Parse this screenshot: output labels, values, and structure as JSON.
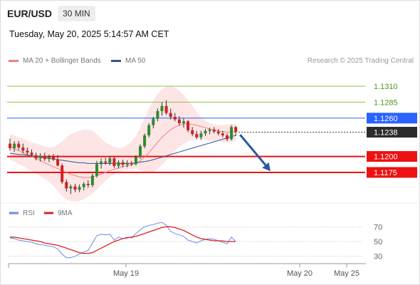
{
  "header": {
    "symbol": "EUR/USD",
    "timeframe": "30 MIN",
    "datetime": "Tuesday, May 20, 2025 5:14:57 AM CET"
  },
  "legend": [
    {
      "label": "MA 20 + Bollinger Bands",
      "color": "#f08080"
    },
    {
      "label": "MA 50",
      "color": "#2f5597"
    }
  ],
  "research": "Research © 2025 Trading Central",
  "colors": {
    "up": "#2e8b2e",
    "down": "#d42020",
    "resistance": "#8bc34a",
    "pivot": "#2962ff",
    "support": "#ee1111",
    "band": "#fde0e0",
    "arrow": "#2a5a9f"
  },
  "chart_data": [
    {
      "type": "candlestick",
      "ylim": [
        1.1127,
        1.1339
      ],
      "levels": [
        {
          "value": 1.131,
          "label": "1.1310",
          "kind": "resistance"
        },
        {
          "value": 1.1285,
          "label": "1.1285",
          "kind": "resistance"
        },
        {
          "value": 1.126,
          "label": "1.1260",
          "kind": "pivot"
        },
        {
          "value": 1.1238,
          "label": "1.1238",
          "kind": "last"
        },
        {
          "value": 1.12,
          "label": "1.1200",
          "kind": "support"
        },
        {
          "value": 1.1175,
          "label": "1.1175",
          "kind": "support"
        }
      ],
      "x_ticks": [
        {
          "index": 18,
          "label": "May 19"
        },
        {
          "index": 46,
          "label": "May 20"
        },
        {
          "index": 53,
          "label": "May 25"
        }
      ],
      "ohlc": [
        [
          1.122,
          1.1228,
          1.1209,
          1.1213
        ],
        [
          1.1213,
          1.1224,
          1.1207,
          1.122
        ],
        [
          1.122,
          1.1224,
          1.121,
          1.1214
        ],
        [
          1.1214,
          1.122,
          1.1205,
          1.1209
        ],
        [
          1.1209,
          1.1214,
          1.1202,
          1.1206
        ],
        [
          1.1206,
          1.1211,
          1.1199,
          1.1202
        ],
        [
          1.1202,
          1.1206,
          1.1194,
          1.1197
        ],
        [
          1.1197,
          1.1205,
          1.1192,
          1.1201
        ],
        [
          1.1201,
          1.1206,
          1.1193,
          1.1196
        ],
        [
          1.1196,
          1.1203,
          1.1191,
          1.1199
        ],
        [
          1.1199,
          1.1204,
          1.1193,
          1.1195
        ],
        [
          1.1195,
          1.1202,
          1.1184,
          1.1186
        ],
        [
          1.1186,
          1.1189,
          1.1157,
          1.116
        ],
        [
          1.116,
          1.1164,
          1.1145,
          1.115
        ],
        [
          1.115,
          1.1156,
          1.1141,
          1.1153
        ],
        [
          1.1153,
          1.1157,
          1.1144,
          1.1148
        ],
        [
          1.1148,
          1.1156,
          1.1144,
          1.1152
        ],
        [
          1.1152,
          1.116,
          1.1147,
          1.1157
        ],
        [
          1.1157,
          1.1163,
          1.1151,
          1.1155
        ],
        [
          1.1155,
          1.1173,
          1.1152,
          1.117
        ],
        [
          1.117,
          1.1193,
          1.1167,
          1.1188
        ],
        [
          1.1188,
          1.1197,
          1.1181,
          1.1192
        ],
        [
          1.1192,
          1.1198,
          1.1187,
          1.119
        ],
        [
          1.119,
          1.1201,
          1.1186,
          1.1197
        ],
        [
          1.1197,
          1.12,
          1.1182,
          1.1185
        ],
        [
          1.1185,
          1.1194,
          1.1181,
          1.1191
        ],
        [
          1.1191,
          1.1195,
          1.1183,
          1.1187
        ],
        [
          1.1187,
          1.1194,
          1.1183,
          1.119
        ],
        [
          1.119,
          1.1193,
          1.1185,
          1.1188
        ],
        [
          1.1188,
          1.1202,
          1.1186,
          1.1199
        ],
        [
          1.1199,
          1.1219,
          1.1196,
          1.1216
        ],
        [
          1.1216,
          1.1236,
          1.1213,
          1.1233
        ],
        [
          1.1233,
          1.1252,
          1.123,
          1.1249
        ],
        [
          1.1249,
          1.1262,
          1.1244,
          1.1259
        ],
        [
          1.1259,
          1.1275,
          1.1255,
          1.1271
        ],
        [
          1.1271,
          1.1285,
          1.1264,
          1.1279
        ],
        [
          1.1279,
          1.1288,
          1.1265,
          1.1268
        ],
        [
          1.1268,
          1.1275,
          1.1258,
          1.1262
        ],
        [
          1.1262,
          1.1268,
          1.1255,
          1.1258
        ],
        [
          1.1258,
          1.1263,
          1.1248,
          1.1252
        ],
        [
          1.1252,
          1.126,
          1.1245,
          1.1255
        ],
        [
          1.1255,
          1.1257,
          1.1238,
          1.1241
        ],
        [
          1.1241,
          1.1246,
          1.1232,
          1.1235
        ],
        [
          1.1235,
          1.124,
          1.1227,
          1.123
        ],
        [
          1.123,
          1.124,
          1.1226,
          1.1236
        ],
        [
          1.1236,
          1.1243,
          1.1232,
          1.124
        ],
        [
          1.124,
          1.1245,
          1.1235,
          1.1242
        ],
        [
          1.1242,
          1.1246,
          1.1236,
          1.1239
        ],
        [
          1.1239,
          1.1243,
          1.1233,
          1.1236
        ],
        [
          1.1236,
          1.124,
          1.123,
          1.1233
        ],
        [
          1.1233,
          1.1236,
          1.1224,
          1.1227
        ],
        [
          1.1227,
          1.1249,
          1.1225,
          1.1246
        ],
        [
          1.1246,
          1.1248,
          1.1232,
          1.1238
        ]
      ],
      "bollinger_upper": [
        1.1235,
        1.1233,
        1.123,
        1.1228,
        1.1225,
        1.1222,
        1.122,
        1.1218,
        1.1216,
        1.1214,
        1.1215,
        1.1218,
        1.1224,
        1.123,
        1.1235,
        1.1238,
        1.124,
        1.1242,
        1.1242,
        1.124,
        1.1235,
        1.1228,
        1.1222,
        1.1218,
        1.1215,
        1.1213,
        1.1214,
        1.1218,
        1.1224,
        1.1232,
        1.1245,
        1.126,
        1.1275,
        1.1288,
        1.1298,
        1.1305,
        1.1309,
        1.131,
        1.1308,
        1.1303,
        1.1296,
        1.1288,
        1.1279,
        1.127,
        1.1262,
        1.1256,
        1.1252,
        1.125,
        1.1249,
        1.1249,
        1.125,
        1.1251,
        1.1252
      ],
      "bollinger_lower": [
        1.1195,
        1.1192,
        1.1188,
        1.1185,
        1.1181,
        1.1177,
        1.1173,
        1.1169,
        1.1165,
        1.116,
        1.1154,
        1.1146,
        1.1138,
        1.1133,
        1.113,
        1.1129,
        1.113,
        1.1133,
        1.1137,
        1.1142,
        1.1148,
        1.1155,
        1.1162,
        1.1168,
        1.1172,
        1.1175,
        1.1178,
        1.118,
        1.1181,
        1.1181,
        1.1178,
        1.1175,
        1.1174,
        1.1176,
        1.118,
        1.1186,
        1.1194,
        1.1202,
        1.1209,
        1.1215,
        1.122,
        1.1224,
        1.1226,
        1.1227,
        1.1227,
        1.1226,
        1.1225,
        1.1224,
        1.1223,
        1.1222,
        1.1222,
        1.1223,
        1.1224
      ],
      "ma20": [
        1.1215,
        1.1212,
        1.1209,
        1.1206,
        1.1203,
        1.12,
        1.1197,
        1.1194,
        1.119,
        1.1187,
        1.1184,
        1.1181,
        1.1178,
        1.1175,
        1.1172,
        1.117,
        1.1168,
        1.1167,
        1.1167,
        1.1168,
        1.117,
        1.1172,
        1.1175,
        1.1178,
        1.118,
        1.1182,
        1.1184,
        1.1185,
        1.1187,
        1.1189,
        1.1193,
        1.1199,
        1.1206,
        1.1214,
        1.1222,
        1.123,
        1.1236,
        1.1242,
        1.1246,
        1.1249,
        1.1251,
        1.1251,
        1.125,
        1.1249,
        1.1247,
        1.1245,
        1.1243,
        1.1241,
        1.124,
        1.1239,
        1.1238,
        1.1238,
        1.1239
      ],
      "ma50": [
        1.1205,
        1.1204,
        1.1203,
        1.1203,
        1.1202,
        1.1201,
        1.12,
        1.1199,
        1.1198,
        1.1197,
        1.1196,
        1.1195,
        1.1194,
        1.1193,
        1.1192,
        1.1191,
        1.119,
        1.119,
        1.1189,
        1.1189,
        1.1189,
        1.1189,
        1.1189,
        1.1189,
        1.1189,
        1.1189,
        1.1189,
        1.1189,
        1.1189,
        1.119,
        1.1191,
        1.1192,
        1.1193,
        1.1195,
        1.1197,
        1.1199,
        1.1201,
        1.1203,
        1.1205,
        1.1207,
        1.1209,
        1.1211,
        1.1213,
        1.1215,
        1.1217,
        1.1219,
        1.1221,
        1.1223,
        1.1225,
        1.1227,
        1.1229,
        1.1231,
        1.1233
      ],
      "forecast_arrow": {
        "from_index": 53,
        "from_value": 1.1234,
        "to_index": 60,
        "to_value": 1.1177
      }
    },
    {
      "type": "line",
      "legend": [
        "RSI",
        "9MA"
      ],
      "ylim": [
        22,
        80
      ],
      "y_ticks": [
        70,
        50,
        30
      ],
      "series": [
        {
          "name": "RSI",
          "color": "#6a8ee0",
          "values": [
            55,
            54,
            52,
            51,
            50,
            49,
            47,
            46,
            45,
            44,
            43,
            40,
            33,
            28,
            28,
            30,
            33,
            36,
            38,
            48,
            58,
            60,
            59,
            60,
            52,
            56,
            54,
            56,
            55,
            61,
            66,
            70,
            72,
            73,
            75,
            76,
            72,
            64,
            61,
            59,
            57,
            52,
            50,
            48,
            51,
            53,
            54,
            53,
            51,
            49,
            47,
            56,
            50
          ]
        },
        {
          "name": "9MA",
          "color": "#dd2222",
          "values": [
            56,
            56,
            55,
            54,
            53,
            52,
            51,
            50,
            48,
            47,
            46,
            45,
            43,
            41,
            39,
            37,
            35,
            34,
            34,
            35,
            38,
            41,
            44,
            47,
            50,
            52,
            54,
            55,
            56,
            57,
            59,
            61,
            63,
            65,
            67,
            69,
            70,
            70,
            69,
            67,
            65,
            62,
            59,
            56,
            54,
            53,
            52,
            51,
            51,
            51,
            50,
            50,
            50
          ]
        }
      ]
    }
  ]
}
